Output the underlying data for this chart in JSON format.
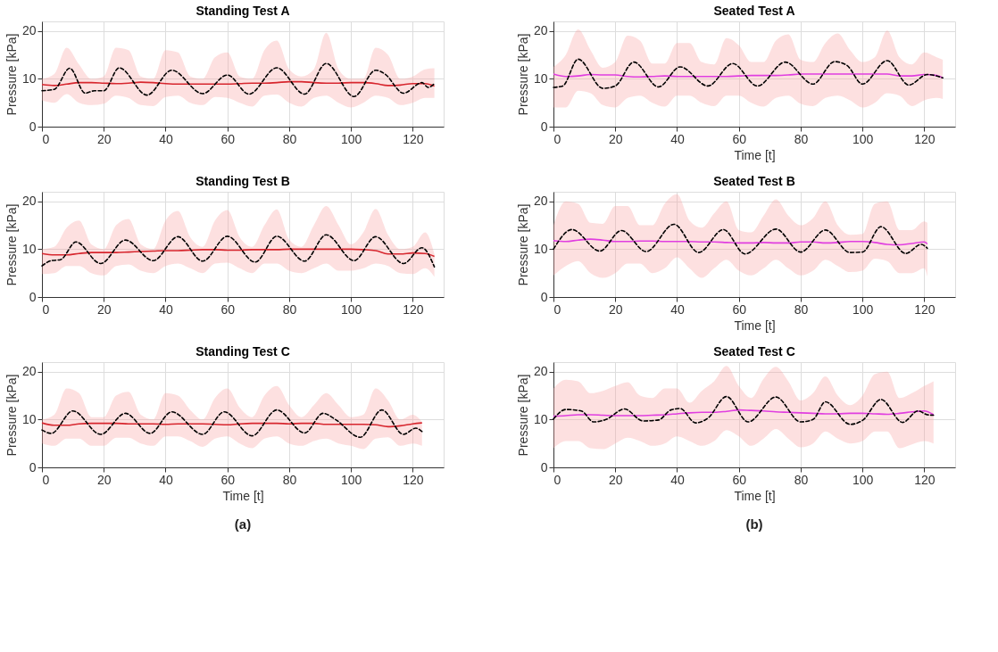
{
  "chart_data": [
    {
      "type": "line",
      "title": "Standing Test A",
      "ylabel": "Pressure [kPa]",
      "xlim": [
        0,
        130
      ],
      "xticks": [
        0,
        20,
        40,
        60,
        80,
        100,
        120
      ],
      "ylim": [
        0,
        22
      ],
      "yticks": [
        0,
        10,
        20
      ],
      "grid": true,
      "series": [
        {
          "color": "#d7262e",
          "x": [
            0,
            4,
            8,
            12,
            16,
            20,
            24,
            28,
            32,
            36,
            40,
            44,
            48,
            52,
            56,
            60,
            64,
            68,
            72,
            76,
            80,
            84,
            88,
            92,
            96,
            100,
            104,
            108,
            112,
            116,
            120,
            124,
            127
          ],
          "values": [
            8.8,
            8.6,
            8.9,
            9.2,
            9.2,
            9.1,
            9.0,
            9.1,
            9.3,
            9.2,
            9.0,
            8.9,
            8.9,
            8.9,
            8.9,
            8.9,
            9.0,
            9.1,
            9.1,
            9.2,
            9.4,
            9.4,
            9.2,
            9.1,
            9.1,
            9.2,
            9.2,
            9.0,
            8.6,
            8.7,
            9.0,
            9.0,
            8.5
          ],
          "lower": [
            5.5,
            5,
            6.8,
            5,
            4.5,
            4.8,
            6.5,
            6,
            4.5,
            4.3,
            6.2,
            6.5,
            5,
            4.5,
            6.2,
            6,
            5,
            4.2,
            6.5,
            6.7,
            5,
            4.2,
            6,
            6.5,
            5,
            4,
            5,
            6.5,
            6,
            4.5,
            5,
            6,
            6
          ],
          "upper": [
            10,
            11,
            16.5,
            13,
            10,
            10.5,
            16.5,
            16,
            10.5,
            10,
            16,
            15.5,
            10.5,
            10,
            14.5,
            15.5,
            10.5,
            10,
            16,
            18,
            12,
            10.5,
            12,
            19.6,
            12,
            10,
            10,
            16.5,
            15,
            10,
            10.5,
            12,
            12.2
          ]
        },
        {
          "color": "#000000",
          "line_style": "dashed",
          "x": [
            0,
            4,
            9,
            14,
            17,
            20,
            25,
            34,
            42,
            52,
            60,
            67,
            76,
            85,
            92,
            101,
            108,
            111,
            117,
            123,
            125,
            127
          ],
          "values": [
            7.5,
            7.8,
            12.2,
            7,
            7.5,
            7.5,
            12.3,
            6.6,
            11.8,
            6.9,
            10.8,
            6.8,
            12.3,
            6.8,
            13.2,
            6.3,
            11.8,
            11,
            7,
            9.2,
            8.2,
            9
          ]
        }
      ]
    },
    {
      "type": "line",
      "title": "Seated Test A",
      "xlabel": "Time [t]",
      "ylabel": "Pressure [kPa]",
      "xlim": [
        0,
        130
      ],
      "xticks": [
        0,
        20,
        40,
        60,
        80,
        100,
        120
      ],
      "ylim": [
        0,
        22
      ],
      "yticks": [
        0,
        10,
        20
      ],
      "grid": true,
      "series": [
        {
          "color": "#e03ee0",
          "x": [
            0,
            4,
            8,
            12,
            16,
            20,
            24,
            28,
            32,
            36,
            40,
            44,
            48,
            52,
            56,
            60,
            64,
            68,
            72,
            76,
            80,
            84,
            88,
            92,
            96,
            100,
            104,
            108,
            112,
            116,
            120,
            124,
            126
          ],
          "values": [
            11,
            10.5,
            10.6,
            10.9,
            10.8,
            10.8,
            10.5,
            10.4,
            10.5,
            10.6,
            10.5,
            10.5,
            10.5,
            10.5,
            10.5,
            10.6,
            10.7,
            10.7,
            10.7,
            10.8,
            11,
            11,
            11,
            11,
            11,
            11,
            11,
            11,
            10.6,
            10.6,
            10.9,
            10.7,
            10.2
          ],
          "lower": [
            4,
            4,
            7.5,
            7,
            4.5,
            4,
            6,
            6.5,
            5,
            4.2,
            6.5,
            6.5,
            5,
            4.3,
            6.5,
            6.5,
            5,
            4.2,
            6,
            6.5,
            4.8,
            4.3,
            6,
            6.5,
            5.5,
            4,
            5,
            7,
            6.5,
            4.3,
            5.5,
            6,
            5.8
          ],
          "upper": [
            12.5,
            15,
            20.3,
            16,
            12.3,
            13.5,
            19,
            18,
            13.2,
            13.2,
            17.5,
            17.5,
            13.5,
            13,
            18.5,
            17,
            13.5,
            13.5,
            18,
            19.3,
            14,
            13.5,
            17.5,
            19.5,
            16,
            13.5,
            14.5,
            20.1,
            14.5,
            13,
            15.5,
            14.5,
            14
          ]
        },
        {
          "color": "#000000",
          "line_style": "dashed",
          "x": [
            0,
            3,
            8,
            16,
            20,
            26,
            34,
            41,
            50,
            58,
            66,
            75,
            84,
            91,
            95,
            100,
            108,
            115,
            121,
            126
          ],
          "values": [
            8.2,
            8.5,
            14.1,
            8,
            8.5,
            13.5,
            8.3,
            12.5,
            8.5,
            13.2,
            8.5,
            13.5,
            8.9,
            13.6,
            12.8,
            8.9,
            13.8,
            8.7,
            10.9,
            10.2
          ]
        }
      ]
    },
    {
      "type": "line",
      "title": "Standing Test B",
      "ylabel": "Pressure [kPa]",
      "xlim": [
        0,
        130
      ],
      "xticks": [
        0,
        20,
        40,
        60,
        80,
        100,
        120
      ],
      "ylim": [
        0,
        22
      ],
      "yticks": [
        0,
        10,
        20
      ],
      "grid": true,
      "series": [
        {
          "color": "#d7262e",
          "x": [
            0,
            4,
            8,
            12,
            16,
            20,
            24,
            28,
            32,
            36,
            40,
            44,
            48,
            52,
            56,
            60,
            64,
            68,
            72,
            76,
            80,
            84,
            88,
            92,
            96,
            100,
            104,
            108,
            112,
            116,
            120,
            124,
            127
          ],
          "values": [
            9.1,
            8.8,
            8.8,
            9.1,
            9.3,
            9.3,
            9.3,
            9.4,
            9.5,
            9.6,
            9.7,
            9.7,
            9.8,
            9.9,
            9.9,
            9.8,
            9.8,
            9.9,
            9.9,
            9.9,
            10,
            10,
            10,
            10,
            10,
            10,
            9.9,
            9.7,
            9.0,
            9.0,
            9.2,
            9.1,
            8.5
          ],
          "lower": [
            4.8,
            5,
            6.5,
            6.5,
            5,
            4.5,
            6.5,
            6.8,
            5.5,
            5,
            6.5,
            7,
            6,
            5,
            7,
            7.2,
            6,
            5,
            7,
            7,
            5.5,
            5,
            6,
            7,
            5.5,
            5.5,
            6,
            7,
            6.5,
            5,
            4.8,
            6,
            4.2
          ],
          "upper": [
            10,
            10.5,
            14.5,
            16,
            11,
            10,
            15,
            16.3,
            11,
            10,
            16,
            18,
            12.5,
            10.5,
            16,
            18.2,
            12.5,
            10.5,
            15,
            18.3,
            12,
            10.5,
            15,
            19,
            15,
            11,
            13.5,
            18.4,
            13,
            10,
            10.5,
            13.5,
            9
          ]
        },
        {
          "color": "#000000",
          "line_style": "dashed",
          "x": [
            0,
            3,
            6,
            11,
            19,
            27,
            36,
            44,
            52,
            60,
            69,
            76,
            85,
            92,
            101,
            108,
            117,
            123,
            127
          ],
          "values": [
            6.5,
            7.6,
            7.8,
            11.5,
            7,
            11.9,
            7.6,
            12.6,
            7.5,
            12.7,
            7.3,
            12.7,
            7.5,
            13,
            7.6,
            12.6,
            7,
            10.3,
            6.3
          ]
        }
      ]
    },
    {
      "type": "line",
      "title": "Seated Test B",
      "xlabel": "Time [t]",
      "ylabel": "Pressure [kPa]",
      "xlim": [
        0,
        130
      ],
      "xticks": [
        0,
        20,
        40,
        60,
        80,
        100,
        120
      ],
      "ylim": [
        0,
        22
      ],
      "yticks": [
        0,
        10,
        20
      ],
      "grid": true,
      "series": [
        {
          "color": "#e03ee0",
          "x": [
            0,
            4,
            8,
            12,
            16,
            20,
            24,
            28,
            32,
            36,
            40,
            44,
            48,
            52,
            56,
            60,
            64,
            68,
            72,
            76,
            80,
            84,
            88,
            92,
            96,
            100,
            104,
            108,
            112,
            116,
            120,
            121
          ],
          "values": [
            11.8,
            11.6,
            11.9,
            12.1,
            11.9,
            11.6,
            11.6,
            11.7,
            11.7,
            11.6,
            11.6,
            11.6,
            11.5,
            11.5,
            11.4,
            11.3,
            11.3,
            11.4,
            11.3,
            11.3,
            11.5,
            11.5,
            11.3,
            11.4,
            11.6,
            11.6,
            11.4,
            11.0,
            10.9,
            11.2,
            11.5,
            11.1
          ],
          "lower": [
            4.5,
            6.5,
            7.5,
            5,
            4,
            5,
            7,
            7,
            5,
            6,
            8.3,
            6,
            4,
            6,
            7.8,
            5.5,
            4.5,
            6,
            7.8,
            6,
            4.5,
            5.5,
            7.8,
            6.5,
            5.2,
            5.5,
            8,
            7.5,
            5,
            5,
            6,
            4.3
          ],
          "upper": [
            15,
            20,
            19.5,
            15.5,
            15.3,
            19,
            19,
            15,
            15,
            19.5,
            21.5,
            16,
            14.5,
            17.5,
            20,
            14,
            13.5,
            17,
            20.4,
            17,
            15,
            16.5,
            20,
            15,
            13,
            13.2,
            19.5,
            20,
            14,
            14,
            15.8,
            15.5
          ]
        },
        {
          "color": "#000000",
          "line_style": "dashed",
          "x": [
            0,
            6,
            15,
            22,
            30,
            39,
            47,
            55,
            62,
            72,
            80,
            88,
            96,
            100,
            106,
            114,
            119,
            121
          ],
          "values": [
            10,
            14.1,
            9.6,
            13.9,
            9.5,
            15.2,
            9.3,
            14.1,
            9,
            14.2,
            9.4,
            14,
            9.3,
            9.4,
            14.7,
            9.1,
            11,
            10.2
          ]
        }
      ]
    },
    {
      "type": "line",
      "title": "Standing Test C",
      "xlabel": "Time [t]",
      "ylabel": "Pressure [kPa]",
      "xlim": [
        0,
        130
      ],
      "xticks": [
        0,
        20,
        40,
        60,
        80,
        100,
        120
      ],
      "ylim": [
        0,
        22
      ],
      "yticks": [
        0,
        10,
        20
      ],
      "grid": true,
      "annotations": [
        "(a)"
      ],
      "series": [
        {
          "color": "#d7262e",
          "x": [
            0,
            4,
            8,
            12,
            16,
            20,
            24,
            28,
            32,
            36,
            40,
            44,
            48,
            52,
            56,
            60,
            64,
            68,
            72,
            76,
            80,
            84,
            88,
            92,
            96,
            100,
            104,
            108,
            112,
            116,
            120,
            123
          ],
          "values": [
            9.3,
            8.8,
            8.8,
            9.1,
            9.2,
            9.2,
            9.2,
            9.1,
            9.1,
            9.1,
            9.0,
            9.1,
            9.1,
            9.1,
            9.0,
            8.9,
            9.1,
            9.2,
            9.2,
            9.2,
            9.1,
            9.2,
            9.2,
            9.0,
            9.0,
            9.0,
            9.0,
            8.9,
            8.5,
            8.7,
            9.1,
            9.3
          ],
          "lower": [
            5,
            4.5,
            6,
            6,
            4.5,
            4.5,
            6.2,
            6.2,
            5,
            4.5,
            6.5,
            6.5,
            5.5,
            4.3,
            6,
            6.5,
            5,
            4,
            6,
            6.5,
            5,
            4.5,
            5.5,
            6,
            5,
            4.5,
            3.8,
            6,
            6.3,
            4.5,
            5,
            4.5
          ],
          "upper": [
            10,
            11,
            16.5,
            15.5,
            10.5,
            10.5,
            15,
            15.8,
            11,
            10,
            15.5,
            15,
            12,
            10,
            14.5,
            16.5,
            12.5,
            10.5,
            15,
            17,
            13,
            10.5,
            13,
            15.5,
            13,
            10.5,
            11,
            16.5,
            14,
            10,
            11,
            9.5
          ]
        },
        {
          "color": "#000000",
          "line_style": "dashed",
          "x": [
            0,
            3,
            10,
            19,
            27,
            35,
            42,
            52,
            59,
            68,
            76,
            85,
            91,
            95,
            103,
            110,
            117,
            121,
            123
          ],
          "values": [
            7.8,
            7.1,
            11.8,
            6.9,
            11.3,
            7.1,
            11.6,
            6.9,
            11.6,
            6.6,
            12,
            7.2,
            11.3,
            10,
            6.3,
            12,
            6.9,
            8.2,
            7.5
          ]
        }
      ]
    },
    {
      "type": "line",
      "title": "Seated Test C",
      "xlabel": "Time [t]",
      "ylabel": "Pressure [kPa]",
      "xlim": [
        0,
        130
      ],
      "xticks": [
        0,
        20,
        40,
        60,
        80,
        100,
        120
      ],
      "ylim": [
        0,
        22
      ],
      "yticks": [
        0,
        10,
        20
      ],
      "grid": true,
      "annotations": [
        "(b)"
      ],
      "series": [
        {
          "color": "#e03ee0",
          "x": [
            0,
            4,
            8,
            12,
            16,
            20,
            24,
            28,
            32,
            36,
            40,
            44,
            48,
            52,
            56,
            60,
            64,
            68,
            72,
            76,
            80,
            84,
            88,
            92,
            96,
            100,
            104,
            108,
            112,
            116,
            120,
            123
          ],
          "values": [
            10.7,
            10.8,
            11,
            11,
            10.9,
            10.8,
            10.8,
            10.8,
            10.9,
            11,
            11.2,
            11.4,
            11.5,
            11.5,
            11.7,
            12,
            11.9,
            11.8,
            11.6,
            11.5,
            11.4,
            11.3,
            11.2,
            11.2,
            11.3,
            11.3,
            11.2,
            11.1,
            11.3,
            11.6,
            11.8,
            11
          ],
          "lower": [
            4,
            5.5,
            5.5,
            4,
            3.8,
            5,
            6.2,
            5.5,
            4.5,
            5,
            6.5,
            5.5,
            4.5,
            5.5,
            7.8,
            6.5,
            4.5,
            6,
            8,
            6,
            4.2,
            5,
            7.5,
            6,
            5,
            5.5,
            7.5,
            7.5,
            4,
            4.8,
            5.5,
            5
          ],
          "upper": [
            16.5,
            18.3,
            18,
            15.5,
            16,
            17,
            17.8,
            15,
            14.5,
            16.5,
            16.5,
            13.5,
            16,
            18,
            21.2,
            17,
            14.5,
            18.5,
            21,
            18,
            14,
            15.5,
            19,
            15,
            13,
            15,
            19.5,
            20,
            14.5,
            15.5,
            17,
            18
          ]
        },
        {
          "color": "#000000",
          "line_style": "dashed",
          "x": [
            0,
            4,
            9,
            13,
            17,
            23,
            29,
            34,
            38,
            41,
            46,
            50,
            56,
            63,
            72,
            80,
            84,
            88,
            96,
            100,
            106,
            113,
            118,
            121,
            123
          ],
          "values": [
            10.1,
            12.1,
            11.8,
            9.5,
            10,
            12.2,
            9.7,
            9.9,
            12,
            12.3,
            9.3,
            10.3,
            14.8,
            9.5,
            14.7,
            9.5,
            10,
            13.7,
            9,
            9.8,
            14.2,
            9.4,
            11.8,
            11,
            10.9
          ]
        }
      ]
    }
  ]
}
